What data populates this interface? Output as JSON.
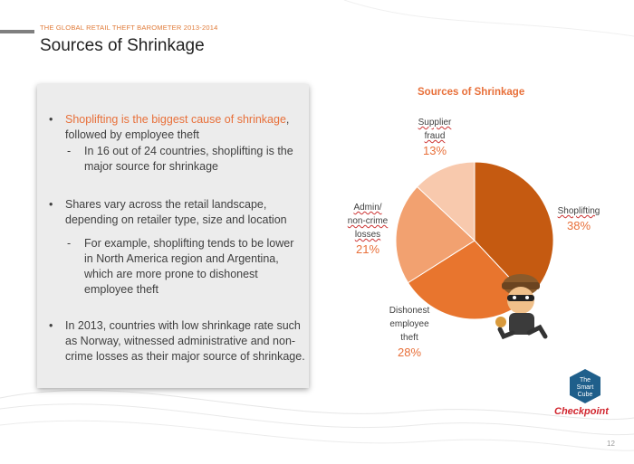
{
  "header": {
    "kicker": "THE GLOBAL RETAIL THEFT BAROMETER 2013-2014",
    "title": "Sources of Shrinkage"
  },
  "bullets": {
    "b1_highlight": "Shoplifting is the biggest cause of shrinkage",
    "b1_rest": ", followed by employee theft",
    "s1": "In 16 out of 24 countries, shoplifting is the major source for shrinkage",
    "b2": "Shares vary across the retail landscape, depending on retailer type, size and location",
    "s2": "For example, shoplifting tends to be lower in North America region and Argentina, which are more prone to dishonest employee theft",
    "b3": "In 2013, countries with low shrinkage rate such as Norway, witnessed administrative and non-crime losses as their major source of shrinkage."
  },
  "chart_data": {
    "type": "pie",
    "title": "Sources of Shrinkage",
    "categories": [
      "Shoplifting",
      "Dishonest employee theft",
      "Admin/ non-crime losses",
      "Supplier fraud"
    ],
    "values": [
      38,
      28,
      21,
      13
    ],
    "labels": {
      "shoplifting": "Shoplifting",
      "dishonest_1": "Dishonest",
      "dishonest_2": "employee",
      "dishonest_3": "theft",
      "admin_1": "Admin/",
      "admin_2": "non-crime",
      "admin_3": "losses",
      "supplier_1": "Supplier",
      "supplier_2": "fraud"
    },
    "percent_labels": [
      "38%",
      "28%",
      "21%",
      "13%"
    ],
    "colors": [
      "#c55a11",
      "#e8752e",
      "#f2a170",
      "#f8c9ad"
    ]
  },
  "logos": {
    "smart_cube_1": "The",
    "smart_cube_2": "Smart",
    "smart_cube_3": "Cube",
    "checkpoint": "Checkpoint"
  },
  "footer": {
    "page_number": "12"
  }
}
